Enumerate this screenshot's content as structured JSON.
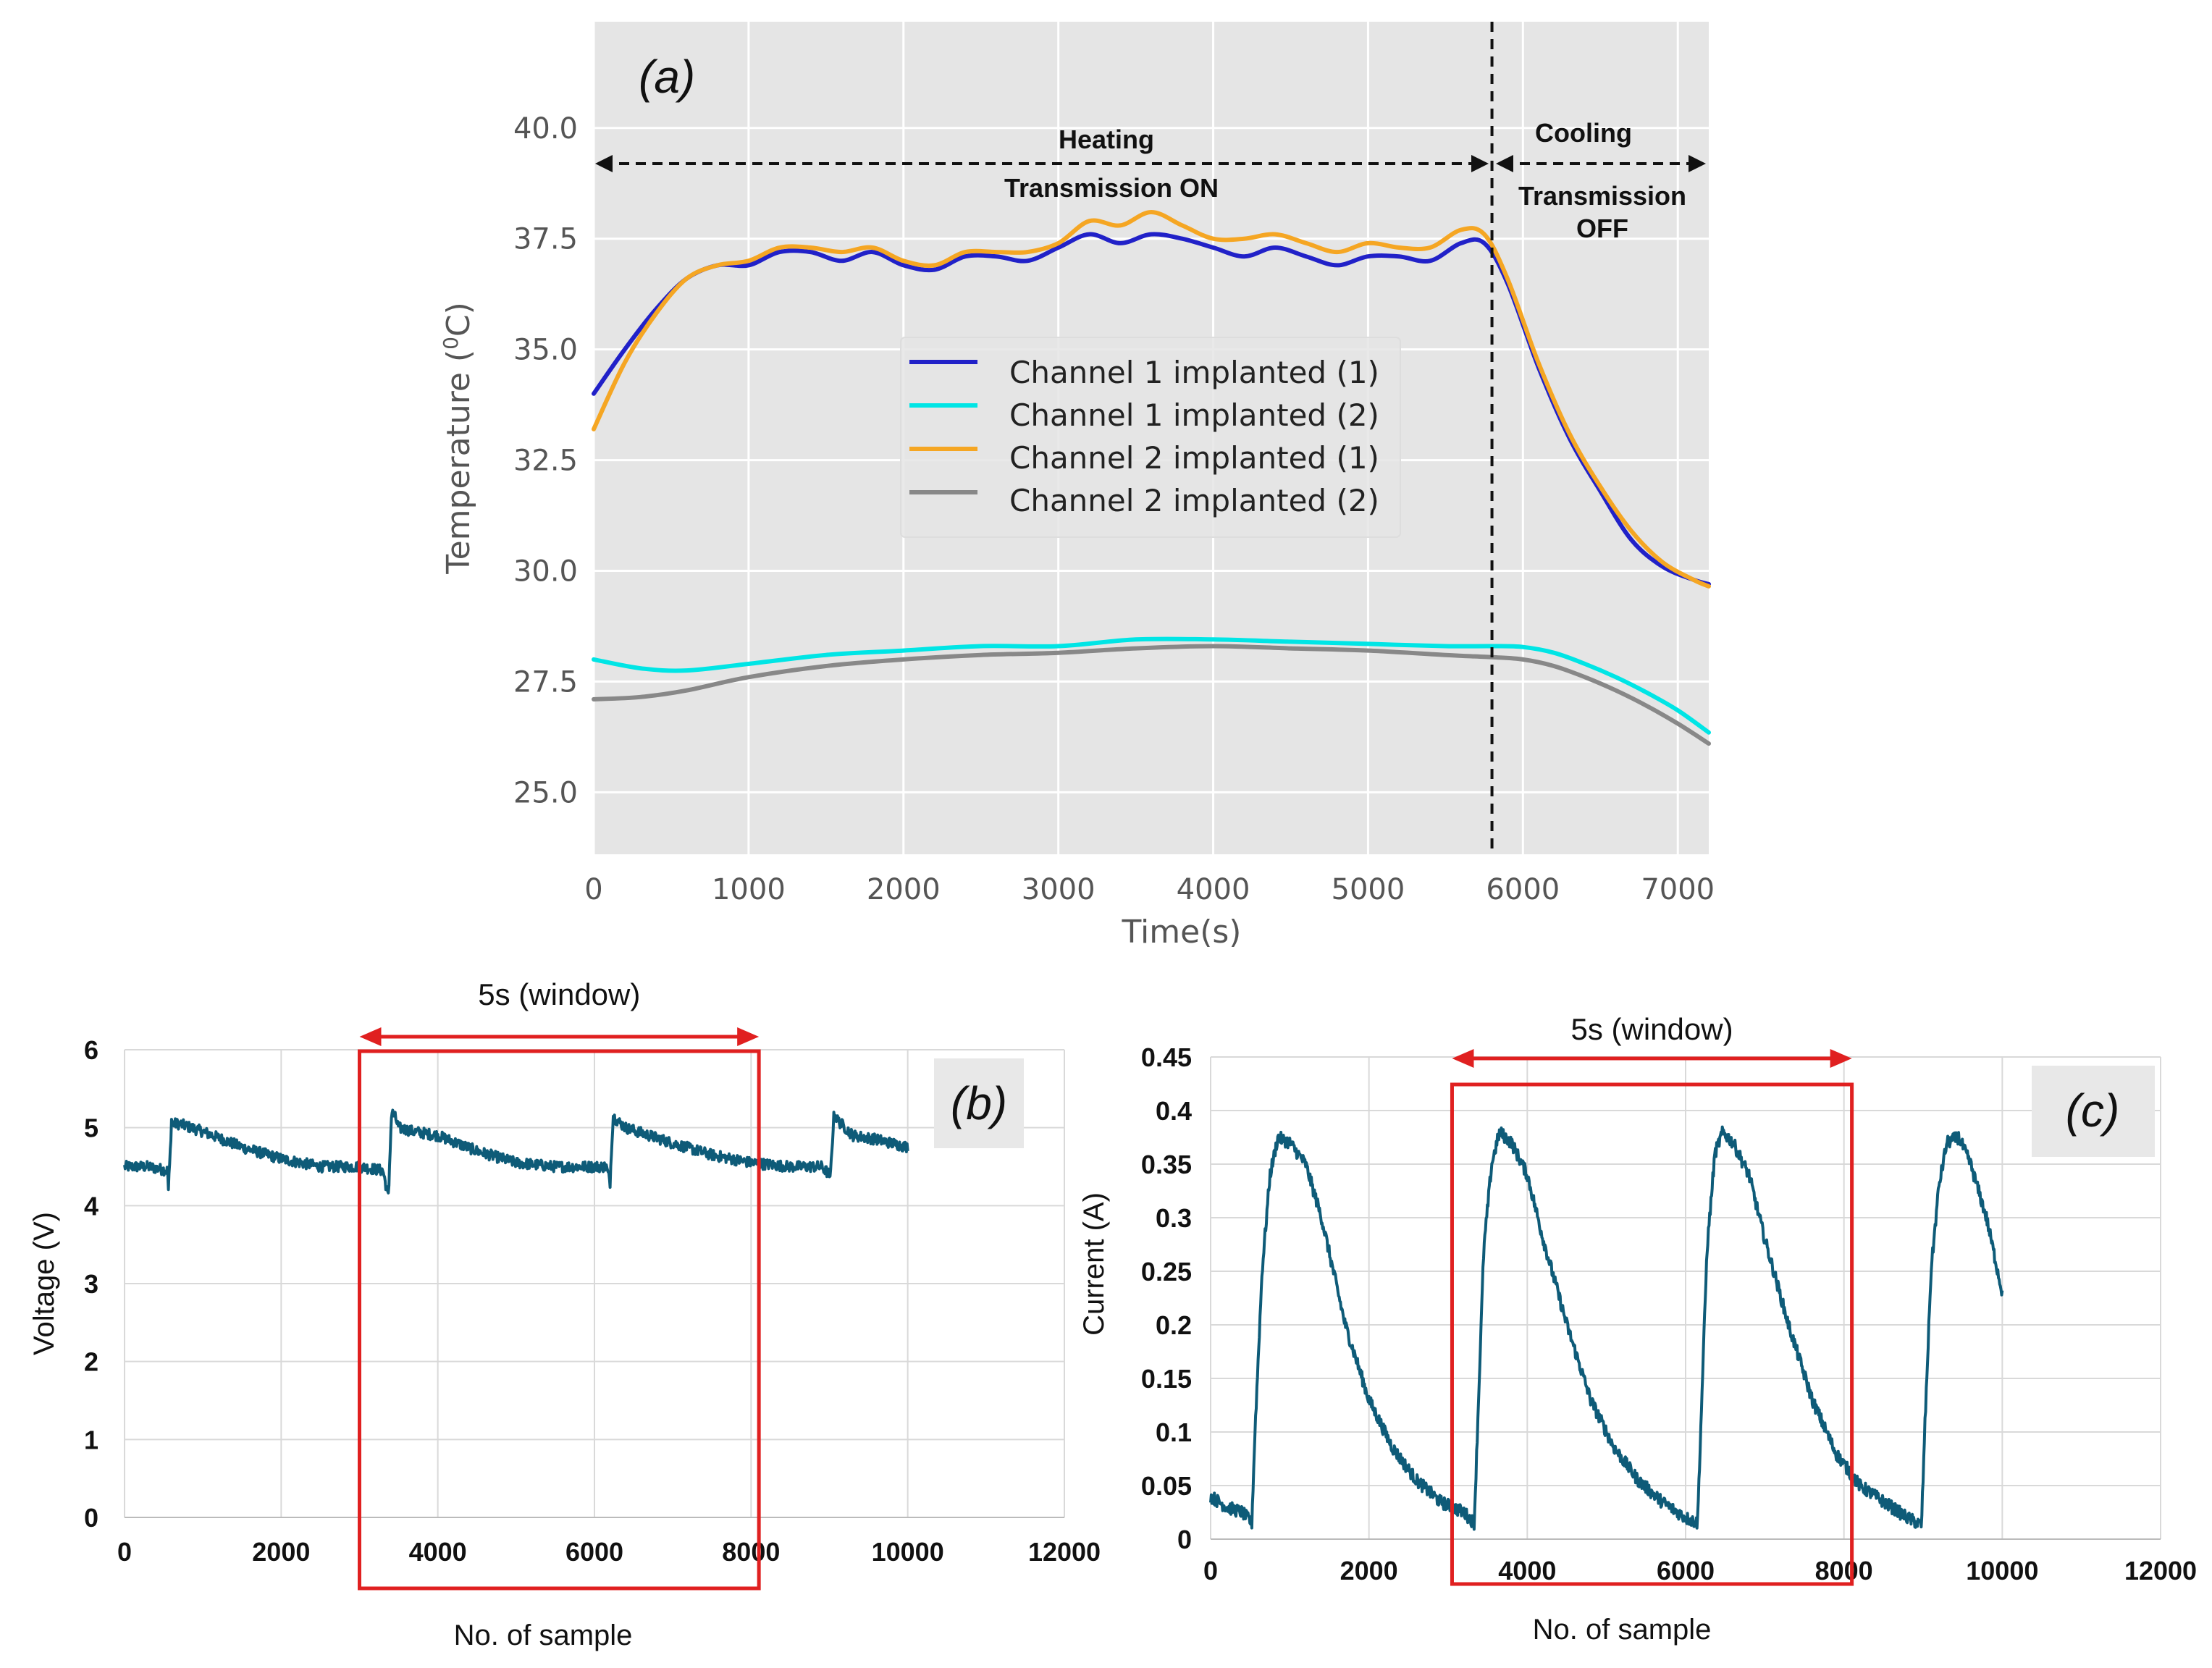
{
  "chart_data": [
    {
      "type": "line",
      "panel_label": "(a)",
      "xlabel": "Time(s)",
      "ylabel": "Temperature (0C)",
      "ylabel_parts": [
        "Temperature (",
        "0",
        "C)"
      ],
      "xlim": [
        0,
        7200
      ],
      "ylim": [
        23.6,
        42.4
      ],
      "xticks": [
        0,
        1000,
        2000,
        3000,
        4000,
        5000,
        6000,
        7000
      ],
      "xtick_labels": [
        "0",
        "1000",
        "2000",
        "3000",
        "4000",
        "5000",
        "6000",
        "7000"
      ],
      "yticks": [
        25.0,
        27.5,
        30.0,
        32.5,
        35.0,
        37.5,
        40.0
      ],
      "ytick_labels": [
        "25.0",
        "27.5",
        "30.0",
        "32.5",
        "35.0",
        "37.5",
        "40.0"
      ],
      "grid": true,
      "legend_position": "center",
      "vline_x": 5800,
      "annotations": {
        "heating": "Heating",
        "transmission_on": "Transmission ON",
        "cooling": "Cooling",
        "transmission_off_1": "Transmission",
        "transmission_off_2": "OFF"
      },
      "series": [
        {
          "name": "Channel 1 implanted (1)",
          "color": "#2121c8",
          "x": [
            0,
            200,
            400,
            600,
            800,
            1000,
            1200,
            1400,
            1600,
            1800,
            2000,
            2200,
            2400,
            2600,
            2800,
            3000,
            3200,
            3400,
            3600,
            3800,
            4000,
            4200,
            4400,
            4600,
            4800,
            5000,
            5200,
            5400,
            5600,
            5750,
            5900,
            6100,
            6300,
            6500,
            6700,
            6900,
            7100,
            7200
          ],
          "values": [
            34.0,
            35.0,
            35.9,
            36.6,
            36.9,
            36.9,
            37.2,
            37.2,
            37.0,
            37.2,
            36.9,
            36.8,
            37.1,
            37.1,
            37.0,
            37.3,
            37.6,
            37.4,
            37.6,
            37.5,
            37.3,
            37.1,
            37.3,
            37.1,
            36.9,
            37.1,
            37.1,
            37.0,
            37.4,
            37.4,
            36.5,
            34.6,
            33.0,
            31.8,
            30.7,
            30.1,
            29.8,
            29.7
          ]
        },
        {
          "name": "Channel 1 implanted (2)",
          "color": "#00e5e5",
          "x": [
            0,
            300,
            600,
            1000,
            1500,
            2000,
            2500,
            3000,
            3500,
            4000,
            4500,
            5000,
            5500,
            5800,
            6000,
            6200,
            6400,
            6600,
            6800,
            7000,
            7200
          ],
          "values": [
            28.0,
            27.8,
            27.75,
            27.9,
            28.1,
            28.2,
            28.3,
            28.3,
            28.45,
            28.45,
            28.4,
            28.35,
            28.3,
            28.3,
            28.28,
            28.15,
            27.9,
            27.6,
            27.25,
            26.85,
            26.35
          ]
        },
        {
          "name": "Channel 2 implanted (1)",
          "color": "#f5a623",
          "x": [
            0,
            200,
            400,
            600,
            800,
            1000,
            1200,
            1400,
            1600,
            1800,
            2000,
            2200,
            2400,
            2600,
            2800,
            3000,
            3200,
            3400,
            3600,
            3800,
            4000,
            4200,
            4400,
            4600,
            4800,
            5000,
            5200,
            5400,
            5600,
            5750,
            5900,
            6100,
            6300,
            6500,
            6700,
            6900,
            7100,
            7200
          ],
          "values": [
            33.2,
            34.7,
            35.8,
            36.6,
            36.9,
            37.0,
            37.3,
            37.3,
            37.2,
            37.3,
            37.0,
            36.9,
            37.2,
            37.2,
            37.2,
            37.4,
            37.9,
            37.8,
            38.1,
            37.8,
            37.5,
            37.5,
            37.6,
            37.4,
            37.2,
            37.4,
            37.3,
            37.3,
            37.7,
            37.6,
            36.6,
            34.7,
            33.1,
            31.9,
            30.9,
            30.2,
            29.8,
            29.65
          ]
        },
        {
          "name": "Channel 2 implanted (2)",
          "color": "#888888",
          "x": [
            0,
            300,
            600,
            1000,
            1500,
            2000,
            2500,
            3000,
            3500,
            4000,
            4500,
            5000,
            5500,
            5800,
            6000,
            6200,
            6400,
            6600,
            6800,
            7000,
            7200
          ],
          "values": [
            27.1,
            27.15,
            27.3,
            27.6,
            27.85,
            28.0,
            28.1,
            28.15,
            28.25,
            28.3,
            28.25,
            28.2,
            28.1,
            28.05,
            28.0,
            27.85,
            27.6,
            27.3,
            26.95,
            26.55,
            26.1
          ]
        }
      ]
    },
    {
      "type": "line",
      "panel_label": "(b)",
      "xlabel": "No. of sample",
      "ylabel": "Voltage (V)",
      "xlim": [
        0,
        12000
      ],
      "ylim": [
        0,
        6
      ],
      "xticks": [
        0,
        2000,
        4000,
        6000,
        8000,
        10000,
        12000
      ],
      "xtick_labels": [
        "0",
        "2000",
        "4000",
        "6000",
        "8000",
        "10000",
        "12000"
      ],
      "yticks": [
        0,
        1,
        2,
        3,
        4,
        5,
        6
      ],
      "ytick_labels": [
        "0",
        "1",
        "2",
        "3",
        "4",
        "5",
        "6"
      ],
      "grid": true,
      "window_label": "5s (window)",
      "window_range": [
        3000,
        8100
      ],
      "series": [
        {
          "name": "Voltage",
          "color": "#0e5b78",
          "x": [
            0,
            300,
            550,
            560,
            580,
            600,
            620,
            700,
            1000,
            1500,
            2000,
            2500,
            3000,
            3300,
            3370,
            3390,
            3410,
            3450,
            3500,
            3700,
            4000,
            4500,
            5000,
            5500,
            6000,
            6150,
            6200,
            6220,
            6240,
            6280,
            6400,
            6700,
            7000,
            7500,
            8000,
            8500,
            8900,
            9000,
            9010,
            9030,
            9060,
            9100,
            9300,
            9600,
            10000
          ],
          "values": [
            4.5,
            4.5,
            4.45,
            4.2,
            4.6,
            5.1,
            5.05,
            5.05,
            4.95,
            4.75,
            4.6,
            4.5,
            4.5,
            4.45,
            4.1,
            4.7,
            5.2,
            5.15,
            5.0,
            4.95,
            4.9,
            4.7,
            4.55,
            4.5,
            4.5,
            4.5,
            4.3,
            4.8,
            5.15,
            5.1,
            5.0,
            4.9,
            4.8,
            4.65,
            4.55,
            4.5,
            4.5,
            4.4,
            4.3,
            4.7,
            5.2,
            5.1,
            4.9,
            4.85,
            4.75
          ]
        }
      ]
    },
    {
      "type": "line",
      "panel_label": "(c)",
      "xlabel": "No. of sample",
      "ylabel": "Current (A)",
      "xlim": [
        0,
        12000
      ],
      "ylim": [
        0,
        0.45
      ],
      "xticks": [
        0,
        2000,
        4000,
        6000,
        8000,
        10000,
        12000
      ],
      "xtick_labels": [
        "0",
        "2000",
        "4000",
        "6000",
        "8000",
        "10000",
        "12000"
      ],
      "yticks": [
        0,
        0.05,
        0.1,
        0.15,
        0.2,
        0.25,
        0.3,
        0.35,
        0.4,
        0.45
      ],
      "ytick_labels": [
        "0",
        "0.05",
        "0.1",
        "0.15",
        "0.2",
        "0.25",
        "0.3",
        "0.35",
        "0.4",
        "0.45"
      ],
      "grid": true,
      "window_label": "5s (window)",
      "window_range": [
        3050,
        8100
      ],
      "series": [
        {
          "name": "Current",
          "color": "#0e5b78",
          "x": [
            0,
            200,
            400,
            520,
            560,
            650,
            750,
            850,
            1000,
            1200,
            1400,
            1700,
            2000,
            2300,
            2600,
            2900,
            3200,
            3330,
            3370,
            3450,
            3550,
            3650,
            3800,
            4000,
            4200,
            4500,
            4800,
            5100,
            5400,
            5700,
            6000,
            6150,
            6190,
            6270,
            6370,
            6470,
            6600,
            6800,
            7000,
            7300,
            7600,
            7900,
            8200,
            8500,
            8800,
            8980,
            9020,
            9100,
            9200,
            9300,
            9450,
            9600,
            9800,
            10000
          ],
          "values": [
            0.04,
            0.03,
            0.025,
            0.015,
            0.1,
            0.25,
            0.34,
            0.375,
            0.37,
            0.35,
            0.3,
            0.2,
            0.13,
            0.085,
            0.055,
            0.035,
            0.025,
            0.015,
            0.1,
            0.27,
            0.35,
            0.38,
            0.37,
            0.34,
            0.28,
            0.2,
            0.13,
            0.085,
            0.055,
            0.035,
            0.02,
            0.015,
            0.1,
            0.27,
            0.36,
            0.38,
            0.37,
            0.34,
            0.28,
            0.2,
            0.13,
            0.08,
            0.05,
            0.035,
            0.02,
            0.013,
            0.1,
            0.25,
            0.33,
            0.37,
            0.375,
            0.35,
            0.3,
            0.23
          ]
        }
      ]
    }
  ]
}
